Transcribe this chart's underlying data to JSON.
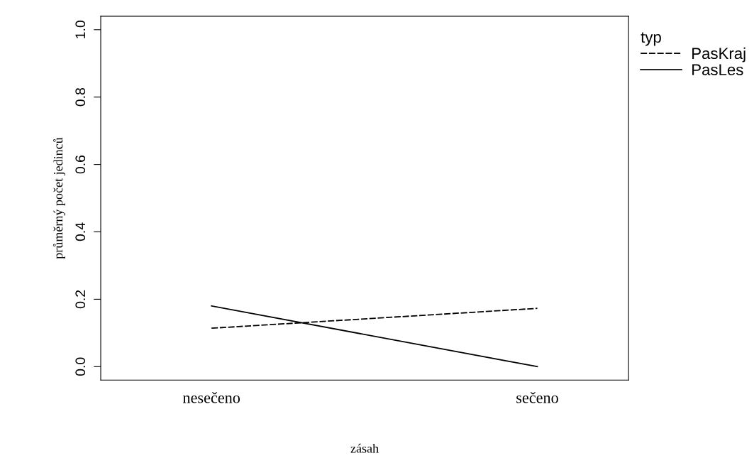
{
  "chart_data": {
    "type": "line",
    "xlabel": "zásah",
    "ylabel": "průměrný počet jedinců",
    "legend_title": "typ",
    "categories": [
      "nesečeno",
      "sečeno"
    ],
    "series": [
      {
        "name": "PasKraj",
        "color": "#000000",
        "line_style": "dashed",
        "values": [
          0.114,
          0.173
        ]
      },
      {
        "name": "PasLes",
        "color": "#000000",
        "line_style": "solid",
        "values": [
          0.18,
          0.0
        ]
      }
    ],
    "ylim": [
      -0.04,
      1.04
    ],
    "yticks": [
      {
        "value": 0,
        "label": "0.0"
      },
      0.2,
      0.4,
      0.6,
      0.8,
      {
        "value": 1,
        "label": "1.0"
      }
    ],
    "grid": false,
    "legend": "top right",
    "marker": "none"
  }
}
